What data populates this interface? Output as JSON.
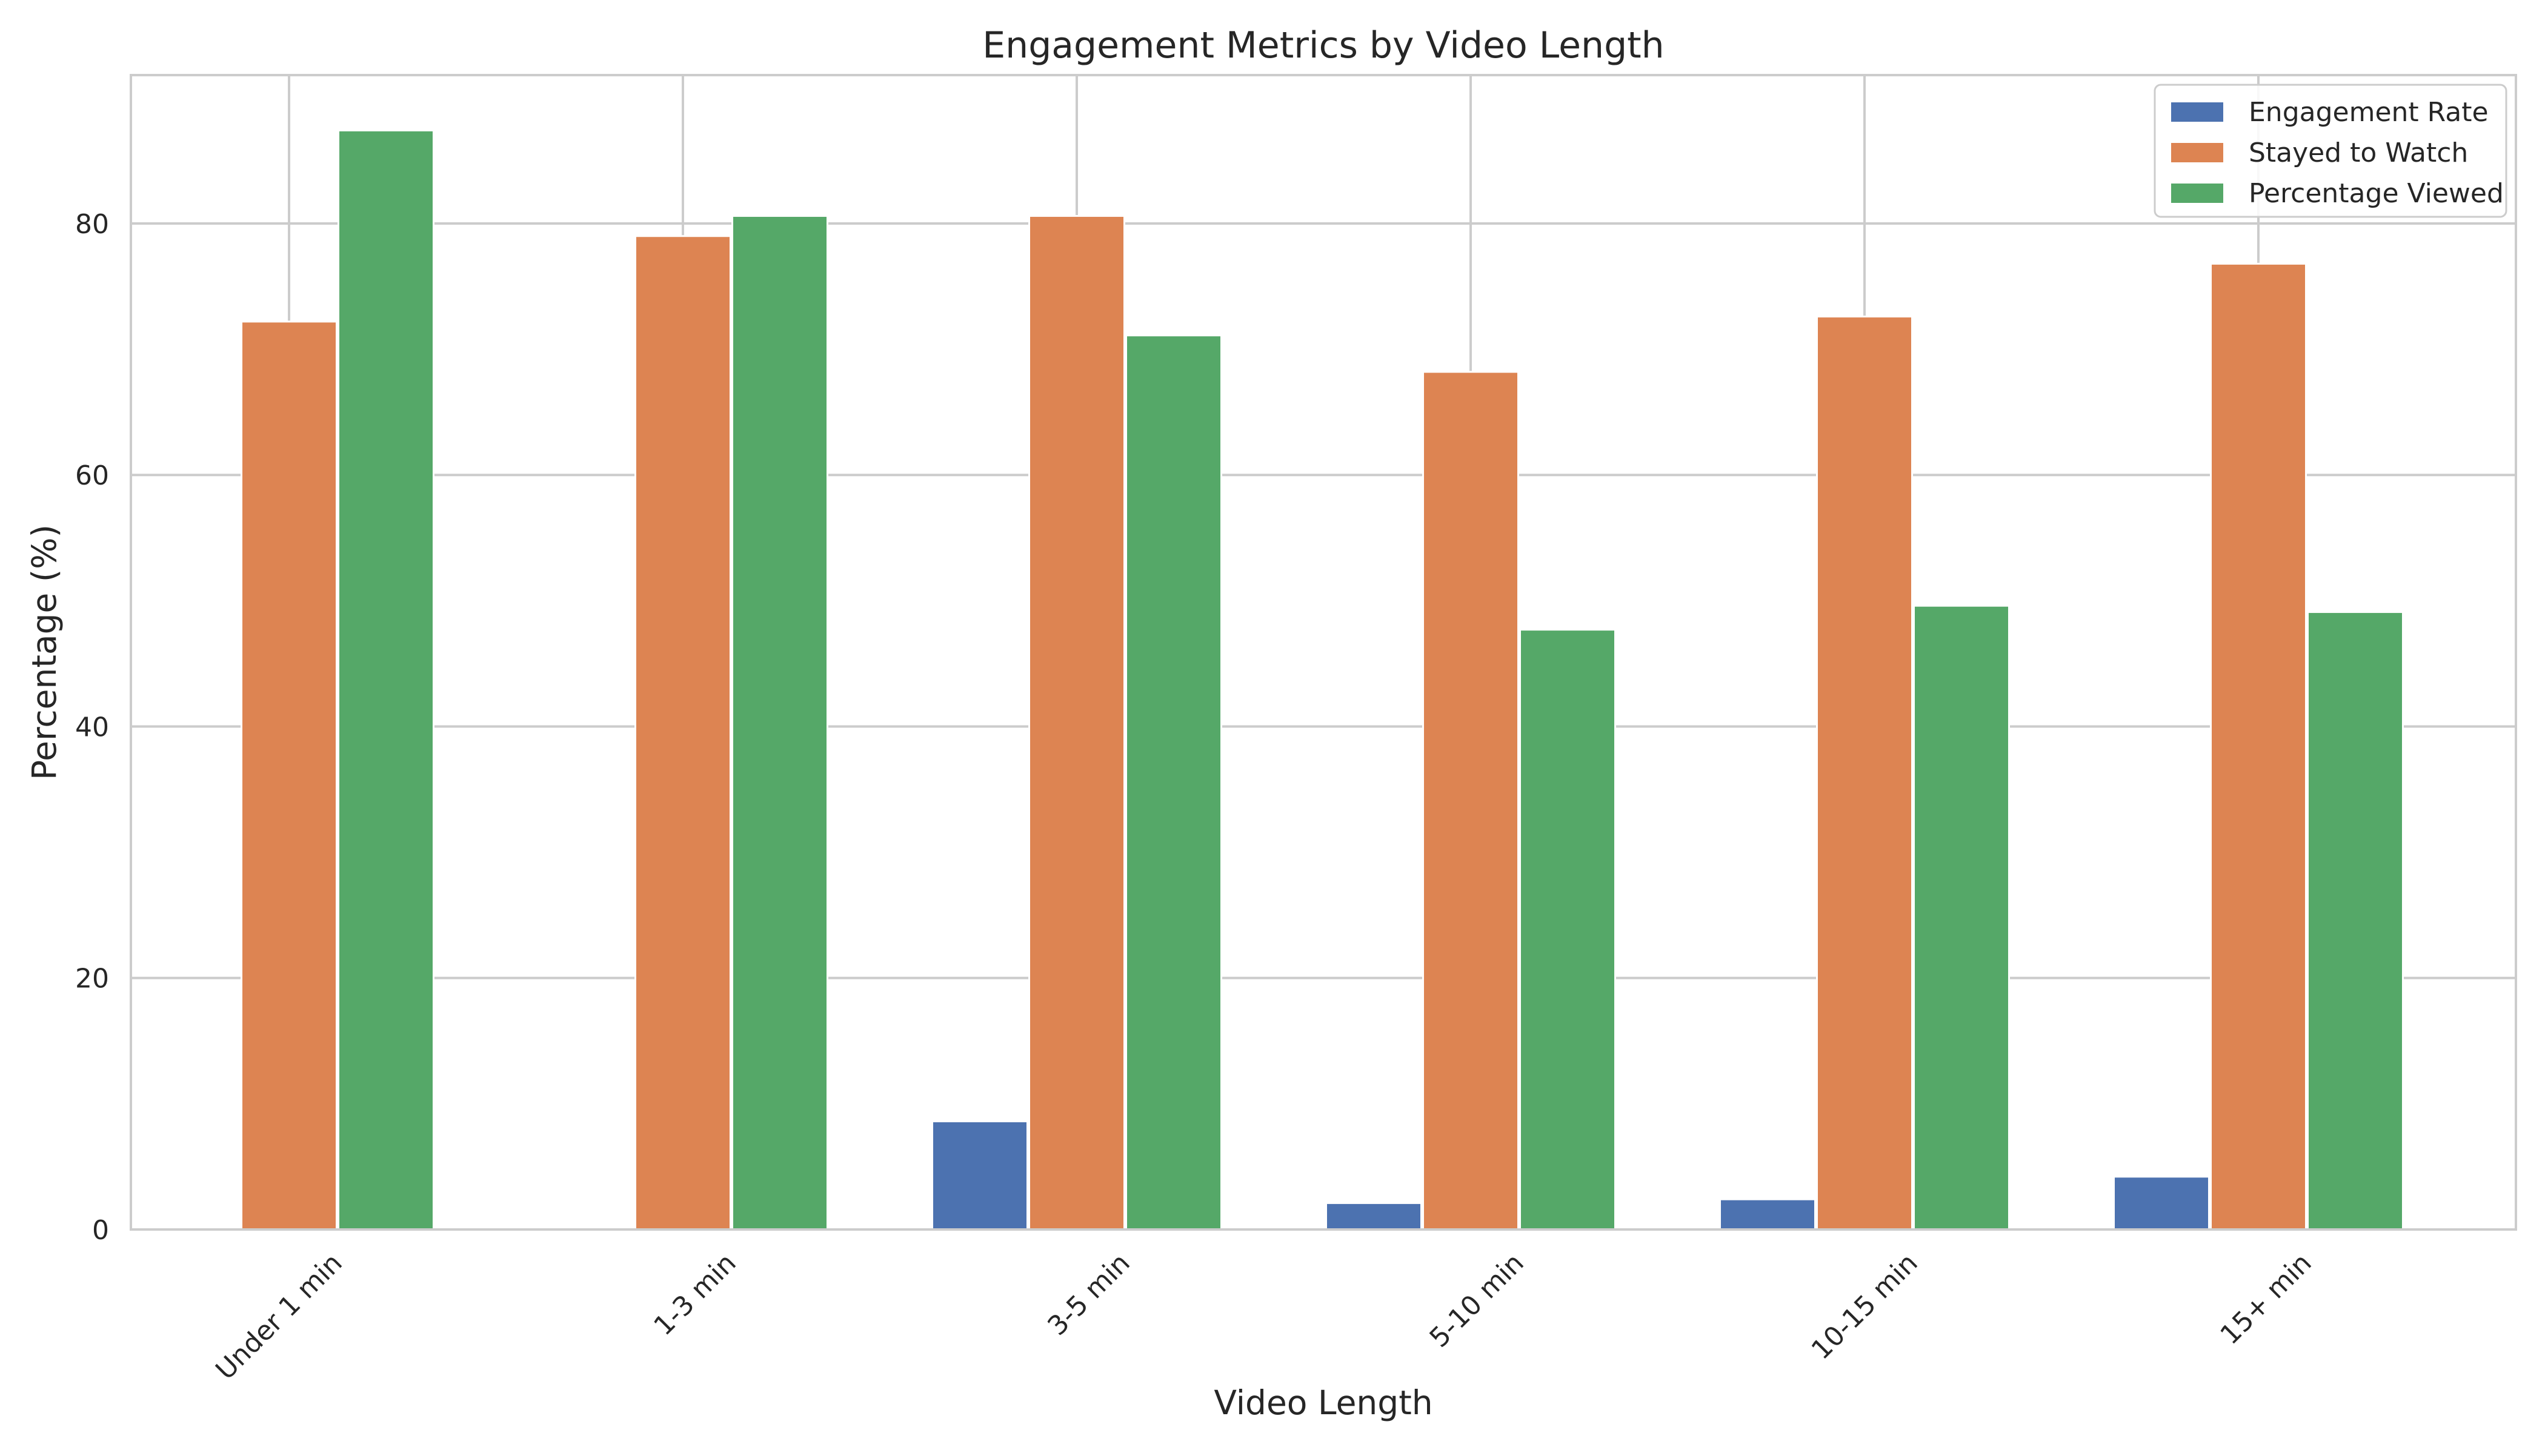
{
  "chart_data": {
    "type": "bar",
    "title": "Engagement Metrics by Video Length",
    "xlabel": "Video Length",
    "ylabel": "Percentage (%)",
    "categories": [
      "Under 1 min",
      "1-3 min",
      "3-5 min",
      "5-10 min",
      "10-15 min",
      "15+ min"
    ],
    "series": [
      {
        "name": "Engagement Rate",
        "color": "#4c72b0",
        "values": [
          0,
          0,
          8.6,
          2.1,
          2.4,
          4.2
        ]
      },
      {
        "name": "Stayed to Watch",
        "color": "#dd8452",
        "values": [
          72.2,
          79.0,
          80.6,
          68.2,
          72.6,
          76.8
        ]
      },
      {
        "name": "Percentage Viewed",
        "color": "#55a868",
        "values": [
          87.4,
          80.6,
          71.1,
          47.7,
          49.6,
          49.1
        ]
      }
    ],
    "ylim": [
      0,
      91.8
    ],
    "yticks": [
      0,
      20,
      40,
      60,
      80
    ],
    "ytick_labels": [
      "0",
      "20",
      "40",
      "60",
      "80"
    ],
    "grid": true,
    "legend_position": "top-right"
  }
}
